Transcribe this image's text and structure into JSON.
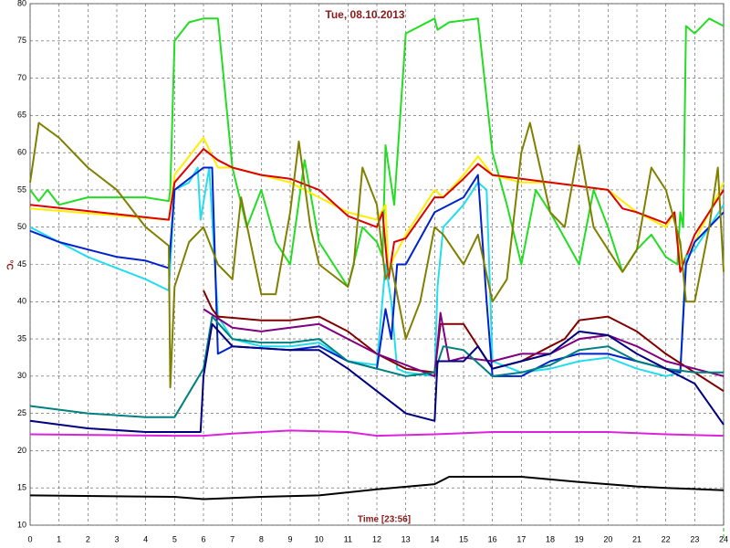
{
  "chart_data": {
    "type": "line",
    "title": "Tue, 08.10.2013",
    "x_label": "Time [23:56]",
    "y_label": "°C",
    "xlim": [
      0,
      24
    ],
    "ylim": [
      10,
      80
    ],
    "xticks": [
      0,
      1,
      2,
      3,
      4,
      5,
      6,
      7,
      8,
      9,
      10,
      11,
      12,
      13,
      14,
      15,
      16,
      17,
      18,
      19,
      20,
      21,
      22,
      23,
      24
    ],
    "yticks": [
      10,
      15,
      20,
      25,
      30,
      35,
      40,
      45,
      50,
      55,
      60,
      65,
      70,
      75,
      80
    ],
    "grid": true,
    "series": [
      {
        "color": "#22dd22",
        "x": [
          0,
          0.3,
          0.6,
          1,
          2,
          3,
          4,
          4.8,
          4.85,
          5,
          5.5,
          6,
          6.5,
          7,
          7.5,
          8,
          8.5,
          9,
          9.5,
          10,
          10.5,
          11,
          11.5,
          12,
          12.2,
          12.3,
          12.6,
          13,
          14,
          14.1,
          14.5,
          15.5,
          16,
          16.5,
          17,
          17.5,
          18,
          19,
          19.5,
          20,
          20.5,
          21,
          21.5,
          22,
          22.4,
          22.5,
          22.6,
          22.7,
          23,
          23.5,
          24
        ],
        "values": [
          55,
          53.5,
          55,
          53,
          54,
          54,
          54,
          53.5,
          55,
          75,
          77.5,
          78,
          78,
          58,
          50,
          55,
          48,
          45,
          59,
          48,
          45,
          42,
          50,
          48,
          46,
          61,
          53,
          76,
          78,
          76.5,
          77.5,
          78,
          60,
          53,
          45,
          55,
          52,
          45,
          55,
          50,
          44,
          47,
          49,
          46,
          45,
          52,
          50,
          77,
          76,
          78,
          77
        ]
      },
      {
        "color": "#ffee00",
        "x": [
          0,
          4.8,
          5,
          6,
          6.5,
          7,
          9,
          10,
          11,
          12,
          12.3,
          12.4,
          12.6,
          13,
          14,
          14.3,
          15,
          15.5,
          16,
          17,
          18,
          19,
          20,
          21,
          22,
          22.3,
          22.5,
          23,
          24
        ],
        "values": [
          52.5,
          51,
          57,
          62,
          58,
          58,
          56,
          54,
          52,
          51,
          53,
          44,
          46,
          49,
          55,
          54,
          57,
          59.5,
          57,
          56,
          56,
          55.5,
          55,
          52,
          50,
          52,
          45,
          48,
          56
        ]
      },
      {
        "color": "#dd0000",
        "x": [
          0,
          4.8,
          5,
          6,
          6.5,
          7,
          8,
          9,
          10,
          11,
          12,
          12.2,
          12.4,
          12.6,
          13,
          14,
          14.3,
          15,
          15.5,
          16,
          17,
          18,
          19,
          20,
          20.5,
          21,
          22,
          22.3,
          22.5,
          23,
          24
        ],
        "values": [
          53,
          51,
          56,
          60.5,
          59,
          58,
          57,
          56.5,
          55,
          51.5,
          50,
          52,
          43,
          48,
          48.5,
          54,
          54,
          56.5,
          58.5,
          57,
          56.5,
          56,
          55.5,
          55,
          52.5,
          52,
          50.5,
          52,
          44,
          49,
          55
        ]
      },
      {
        "color": "#22ddee",
        "x": [
          0,
          1,
          2,
          3,
          4,
          4.8,
          5,
          5.5,
          5.8,
          5.9,
          6.2,
          6.5,
          7,
          8,
          9,
          10,
          11,
          12,
          12.3,
          12.5,
          12.7,
          13,
          14,
          14.1,
          14.3,
          15,
          15.5,
          15.8,
          16,
          17,
          18,
          19,
          20,
          21,
          22,
          22.5,
          22.7,
          23,
          23.5,
          24
        ],
        "values": [
          50,
          48,
          46,
          44.5,
          43,
          41.5,
          55,
          56,
          58,
          51,
          58,
          38,
          35,
          34,
          34,
          34.5,
          32,
          31.5,
          45,
          40,
          31,
          30.5,
          30,
          42,
          50,
          53,
          56,
          55,
          32,
          30.5,
          31,
          32,
          32.5,
          31,
          30,
          30.5,
          46,
          47,
          50,
          53
        ]
      },
      {
        "color": "#0022cc",
        "x": [
          0,
          1,
          2,
          3,
          4,
          4.8,
          5,
          6,
          6.3,
          6.5,
          7,
          9,
          10,
          11,
          12,
          12.3,
          12.5,
          12.7,
          13,
          14,
          15,
          15.5,
          15.8,
          16,
          17,
          18,
          19,
          20,
          21,
          22,
          22.5,
          22.7,
          23,
          24
        ],
        "values": [
          49.5,
          48,
          47,
          46,
          45.5,
          44.5,
          55,
          58,
          58,
          33,
          34,
          33.5,
          34,
          32,
          31,
          39,
          35,
          45,
          45,
          52,
          54,
          57,
          40,
          30,
          30,
          32,
          33,
          33,
          32,
          31,
          30.5,
          45,
          48,
          52
        ]
      },
      {
        "color": "#808000",
        "x": [
          0,
          0.3,
          1,
          2,
          3,
          4,
          4.8,
          4.85,
          5,
          5.5,
          6,
          6.5,
          7,
          7.3,
          8,
          8.5,
          9,
          9.3,
          9.7,
          10,
          11,
          11.2,
          11.5,
          12,
          12.3,
          12.5,
          13,
          13.5,
          14,
          14.3,
          15,
          15.5,
          16,
          16.5,
          17,
          17.3,
          18,
          18.5,
          19,
          19.5,
          20,
          20.5,
          21,
          21.5,
          22,
          22.5,
          22.7,
          23,
          23.5,
          23.8,
          24
        ],
        "values": [
          56,
          64,
          62,
          58,
          55,
          50,
          47.5,
          28.5,
          42,
          48,
          50,
          45,
          43,
          54,
          41,
          41,
          52,
          61.5,
          50,
          45,
          42,
          45,
          58,
          53,
          43,
          45,
          35,
          40,
          50,
          49,
          45,
          49,
          40,
          43,
          60,
          64,
          52,
          50,
          61,
          50,
          47,
          44,
          47,
          58,
          55,
          48,
          40,
          40,
          50,
          58,
          44
        ]
      },
      {
        "color": "#800000",
        "x": [
          6,
          6.3,
          6.5,
          8,
          9,
          10,
          11,
          12,
          13,
          14,
          14.2,
          15,
          16,
          17,
          18,
          18.5,
          19,
          20,
          21,
          22,
          23,
          24
        ],
        "values": [
          41.5,
          39,
          38,
          37.5,
          37.5,
          38,
          36,
          33,
          31,
          30.5,
          37,
          37,
          31,
          32,
          34,
          35,
          37.5,
          38,
          36,
          33,
          30.5,
          28
        ]
      },
      {
        "color": "#800080",
        "x": [
          6,
          7,
          8,
          9,
          10,
          11,
          12,
          13,
          14,
          14.2,
          14.5,
          15,
          16,
          17,
          18,
          19,
          20,
          21,
          22,
          24
        ],
        "values": [
          39,
          36.5,
          36,
          36.5,
          37,
          35,
          33,
          31.5,
          30,
          38.5,
          32,
          32.5,
          32,
          33,
          33,
          35,
          35.5,
          34,
          32,
          30
        ]
      },
      {
        "color": "#008080",
        "x": [
          0,
          2,
          4,
          5,
          6,
          6.3,
          7,
          8,
          9,
          10,
          11,
          12,
          13,
          14,
          14.3,
          15,
          16,
          17,
          18,
          19,
          20,
          21,
          22,
          23,
          24
        ],
        "values": [
          26,
          25,
          24.5,
          24.5,
          31,
          38,
          35,
          34.5,
          34.5,
          35,
          32,
          31,
          30,
          30.5,
          34,
          33.5,
          30,
          30.5,
          31.5,
          33.5,
          34,
          32,
          31,
          30.5,
          30.5
        ]
      },
      {
        "color": "#000080",
        "x": [
          0,
          2,
          4,
          5,
          5.9,
          6,
          6.3,
          7,
          9,
          10,
          11,
          12,
          13,
          14,
          14.1,
          15,
          15.5,
          16,
          17,
          18,
          19,
          20,
          21,
          22,
          23,
          24
        ],
        "values": [
          24,
          23,
          22.5,
          22.5,
          22.5,
          30,
          37,
          34,
          33.5,
          33.5,
          31,
          28,
          25,
          24,
          32,
          32,
          34,
          31,
          32,
          33,
          36,
          35.5,
          33,
          31,
          29,
          23.5
        ]
      },
      {
        "color": "#dd22dd",
        "x": [
          0,
          5,
          6,
          7,
          9,
          11,
          12,
          14,
          16,
          20,
          22,
          24
        ],
        "values": [
          22.2,
          22,
          22,
          22.3,
          22.7,
          22.5,
          22,
          22.2,
          22.5,
          22.5,
          22.2,
          22
        ]
      },
      {
        "color": "#000000",
        "x": [
          0,
          5,
          6,
          8,
          10,
          12,
          14,
          14.5,
          16,
          17,
          19,
          21,
          22,
          24
        ],
        "values": [
          14,
          13.8,
          13.5,
          13.8,
          14,
          14.8,
          15.5,
          16.5,
          16.5,
          16.5,
          15.8,
          15.2,
          15,
          14.7
        ]
      }
    ]
  }
}
